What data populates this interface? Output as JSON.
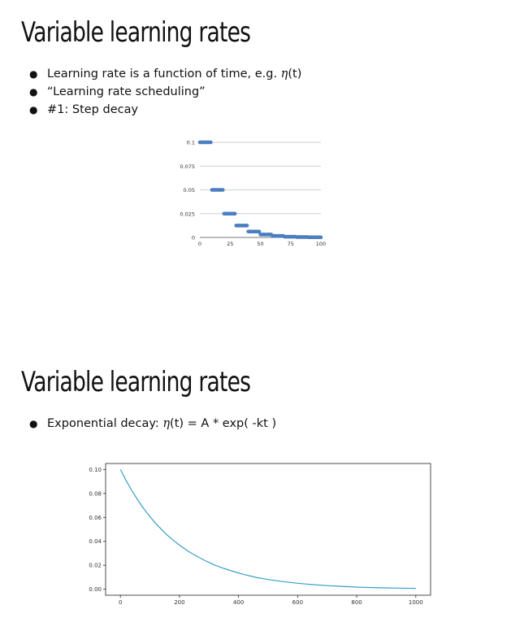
{
  "slides": [
    {
      "title": "Variable learning rates",
      "bullets": [
        {
          "parts": [
            "Learning rate is a function of time, e.g. ",
            "η",
            "(t)"
          ]
        },
        {
          "parts": [
            "“Learning rate scheduling”"
          ]
        },
        {
          "parts": [
            "#1: Step decay"
          ]
        }
      ]
    },
    {
      "title": "Variable learning rates",
      "bullets": [
        {
          "parts": [
            "Exponential decay: ",
            "η",
            "(t) = A * exp( -kt )"
          ]
        }
      ]
    }
  ],
  "bullet_glyph": "●",
  "chart_data": [
    {
      "type": "scatter",
      "title": "",
      "xlabel": "",
      "ylabel": "",
      "xlim": [
        0,
        100
      ],
      "ylim": [
        0,
        0.1
      ],
      "x_ticks": [
        "0",
        "25",
        "50",
        "75",
        "100"
      ],
      "y_ticks": [
        "0.1",
        "0.075",
        "0.05",
        "0.025",
        "0"
      ],
      "grid": true,
      "legend": "none",
      "color": "#4a7ebf",
      "step_length": 10,
      "series": [
        {
          "x": [
            0,
            1,
            2,
            3,
            4,
            5,
            6,
            7,
            8,
            9,
            10,
            11,
            12,
            13,
            14,
            15,
            16,
            17,
            18,
            19,
            20,
            21,
            22,
            23,
            24,
            25,
            26,
            27,
            28,
            29,
            30,
            31,
            32,
            33,
            34,
            35,
            36,
            37,
            38,
            39,
            40,
            41,
            42,
            43,
            44,
            45,
            46,
            47,
            48,
            49,
            50,
            51,
            52,
            53,
            54,
            55,
            56,
            57,
            58,
            59,
            60,
            61,
            62,
            63,
            64,
            65,
            66,
            67,
            68,
            69,
            70,
            71,
            72,
            73,
            74,
            75,
            76,
            77,
            78,
            79,
            80,
            81,
            82,
            83,
            84,
            85,
            86,
            87,
            88,
            89,
            90,
            91,
            92,
            93,
            94,
            95,
            96,
            97,
            98,
            99,
            100
          ],
          "y": [
            0.1,
            0.1,
            0.1,
            0.1,
            0.1,
            0.1,
            0.1,
            0.1,
            0.1,
            0.1,
            0.05,
            0.05,
            0.05,
            0.05,
            0.05,
            0.05,
            0.05,
            0.05,
            0.05,
            0.05,
            0.025,
            0.025,
            0.025,
            0.025,
            0.025,
            0.025,
            0.025,
            0.025,
            0.025,
            0.025,
            0.0125,
            0.0125,
            0.0125,
            0.0125,
            0.0125,
            0.0125,
            0.0125,
            0.0125,
            0.0125,
            0.0125,
            0.00625,
            0.00625,
            0.00625,
            0.00625,
            0.00625,
            0.00625,
            0.00625,
            0.00625,
            0.00625,
            0.00625,
            0.003125,
            0.003125,
            0.003125,
            0.003125,
            0.003125,
            0.003125,
            0.003125,
            0.003125,
            0.003125,
            0.003125,
            0.0015625,
            0.0015625,
            0.0015625,
            0.0015625,
            0.0015625,
            0.0015625,
            0.0015625,
            0.0015625,
            0.0015625,
            0.0015625,
            0.00078125,
            0.00078125,
            0.00078125,
            0.00078125,
            0.00078125,
            0.00078125,
            0.00078125,
            0.00078125,
            0.00078125,
            0.00078125,
            0.000390625,
            0.000390625,
            0.000390625,
            0.000390625,
            0.000390625,
            0.000390625,
            0.000390625,
            0.000390625,
            0.000390625,
            0.000390625,
            0.0001953125,
            0.0001953125,
            0.0001953125,
            0.0001953125,
            0.0001953125,
            0.0001953125,
            0.0001953125,
            0.0001953125,
            0.0001953125,
            0.0001953125,
            0.0001
          ]
        }
      ]
    },
    {
      "type": "line",
      "title": "",
      "xlabel": "",
      "ylabel": "",
      "xlim": [
        -50,
        1050
      ],
      "ylim": [
        -0.005,
        0.105
      ],
      "x_ticks": [
        "0",
        "200",
        "400",
        "600",
        "800",
        "1000"
      ],
      "y_ticks": [
        "0.10",
        "0.08",
        "0.06",
        "0.04",
        "0.02",
        "0.00"
      ],
      "grid": false,
      "legend": "none",
      "color": "#3a9fc4",
      "series": [
        {
          "x": [
            0,
            20,
            40,
            60,
            80,
            100,
            120,
            140,
            160,
            180,
            200,
            230,
            260,
            290,
            320,
            350,
            380,
            420,
            460,
            500,
            550,
            600,
            650,
            700,
            750,
            800,
            850,
            900,
            950,
            1000
          ],
          "y": [
            0.1,
            0.0905,
            0.0819,
            0.0741,
            0.067,
            0.0607,
            0.0549,
            0.0497,
            0.0449,
            0.0407,
            0.0368,
            0.0317,
            0.0273,
            0.0235,
            0.0202,
            0.0174,
            0.015,
            0.0122,
            0.0099,
            0.0081,
            0.0064,
            0.005,
            0.0039,
            0.003,
            0.0024,
            0.0018,
            0.0014,
            0.0011,
            0.0009,
            0.0007
          ]
        }
      ]
    }
  ]
}
